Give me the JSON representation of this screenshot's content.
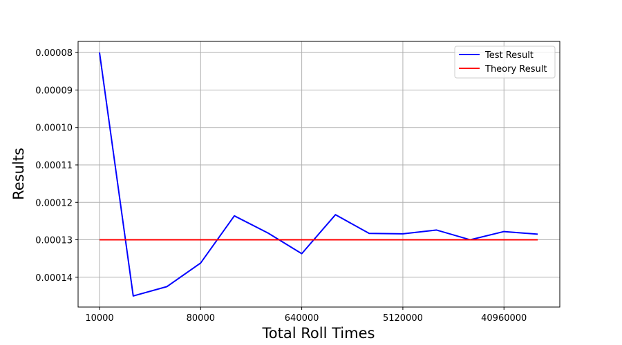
{
  "chart_data": {
    "type": "line",
    "title": "",
    "xlabel": "Total Roll Times",
    "ylabel": "Results",
    "x_scale": "log2",
    "x": [
      10000,
      20000,
      40000,
      80000,
      160000,
      320000,
      640000,
      1280000,
      2560000,
      5120000,
      10240000,
      20480000,
      40960000,
      81920000
    ],
    "x_ticks": [
      10000,
      80000,
      640000,
      5120000,
      40960000
    ],
    "x_tick_labels": [
      "10000",
      "80000",
      "640000",
      "5120000",
      "40960000"
    ],
    "y_ticks": [
      8e-05,
      9e-05,
      0.0001,
      0.00011,
      0.00012,
      0.00013,
      0.00014
    ],
    "y_tick_labels": [
      "0.00008",
      "0.00009",
      "0.00010",
      "0.00011",
      "0.00012",
      "0.00013",
      "0.00014"
    ],
    "ylim": [
      7.702e-05,
      0.00014796
    ],
    "y_inverted": true,
    "grid": true,
    "legend_position": "top-right",
    "series": [
      {
        "name": "Test Result",
        "color": "#0000ff",
        "values": [
          8e-05,
          0.000145,
          0.0001425,
          0.0001362,
          0.0001236,
          0.0001282,
          0.0001337,
          0.0001233,
          0.0001283,
          0.0001284,
          0.0001274,
          0.00013,
          0.0001278,
          0.0001285
        ]
      },
      {
        "name": "Theory Result",
        "color": "#ff0000",
        "values": [
          0.00013,
          0.00013,
          0.00013,
          0.00013,
          0.00013,
          0.00013,
          0.00013,
          0.00013,
          0.00013,
          0.00013,
          0.00013,
          0.00013,
          0.00013,
          0.00013
        ]
      }
    ]
  }
}
